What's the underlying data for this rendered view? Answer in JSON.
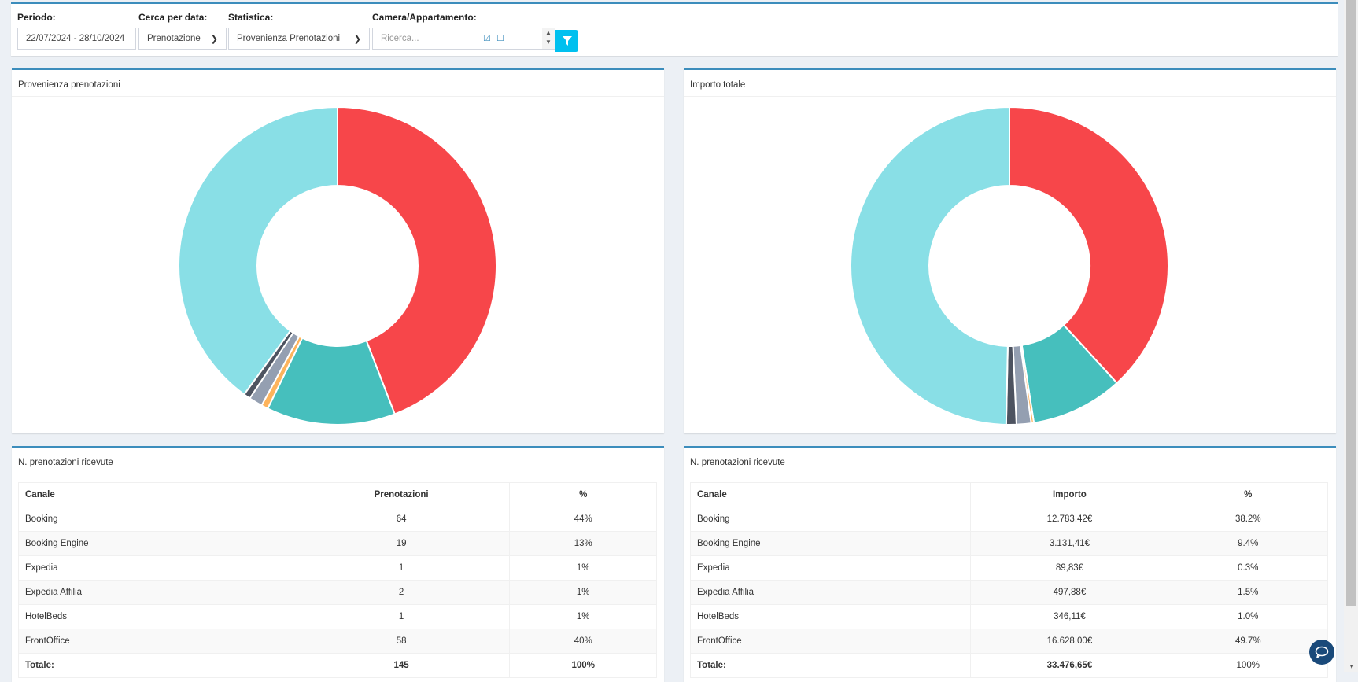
{
  "filters": {
    "periodo": {
      "label": "Periodo:",
      "value": "22/07/2024 - 28/10/2024"
    },
    "cerca": {
      "label": "Cerca per data:",
      "value": "Prenotazione"
    },
    "statistica": {
      "label": "Statistica:",
      "value": "Provenienza Prenotazioni"
    },
    "camera": {
      "label": "Camera/Appartamento:",
      "placeholder": "Ricerca..."
    },
    "filter_icon": "filter-icon"
  },
  "colors": {
    "accent": "#3c8dbc",
    "button": "#00c0ef",
    "Booking": "#f7464a",
    "Booking Engine": "#46bfbd",
    "Expedia": "#fdb45c",
    "Expedia Affilia": "#949fb1",
    "HotelBeds": "#4d5360",
    "FrontOffice": "#89dfe6"
  },
  "chart_data": [
    {
      "type": "pie",
      "title": "Provenienza prenotazioni",
      "donut": true,
      "categories": [
        "Booking",
        "Booking Engine",
        "Expedia",
        "Expedia Affilia",
        "HotelBeds",
        "FrontOffice"
      ],
      "values": [
        64,
        19,
        1,
        2,
        1,
        58
      ]
    },
    {
      "type": "pie",
      "title": "Importo totale",
      "donut": true,
      "categories": [
        "Booking",
        "Booking Engine",
        "Expedia",
        "Expedia Affilia",
        "HotelBeds",
        "FrontOffice"
      ],
      "values": [
        12783.42,
        3131.41,
        89.83,
        497.88,
        346.11,
        16628.0
      ]
    }
  ],
  "tables": [
    {
      "title": "N. prenotazioni ricevute",
      "headers": [
        "Canale",
        "Prenotazioni",
        "%"
      ],
      "rows": [
        [
          "Booking",
          "64",
          "44%"
        ],
        [
          "Booking Engine",
          "19",
          "13%"
        ],
        [
          "Expedia",
          "1",
          "1%"
        ],
        [
          "Expedia Affilia",
          "2",
          "1%"
        ],
        [
          "HotelBeds",
          "1",
          "1%"
        ],
        [
          "FrontOffice",
          "58",
          "40%"
        ]
      ],
      "total": [
        "Totale:",
        "145",
        "100%"
      ]
    },
    {
      "title": "N. prenotazioni ricevute",
      "headers": [
        "Canale",
        "Importo",
        "%"
      ],
      "rows": [
        [
          "Booking",
          "12.783,42€",
          "38.2%"
        ],
        [
          "Booking Engine",
          "3.131,41€",
          "9.4%"
        ],
        [
          "Expedia",
          "89,83€",
          "0.3%"
        ],
        [
          "Expedia Affilia",
          "497,88€",
          "1.5%"
        ],
        [
          "HotelBeds",
          "346,11€",
          "1.0%"
        ],
        [
          "FrontOffice",
          "16.628,00€",
          "49.7%"
        ]
      ],
      "total": [
        "Totale:",
        "33.476,65€",
        "100%"
      ]
    }
  ]
}
